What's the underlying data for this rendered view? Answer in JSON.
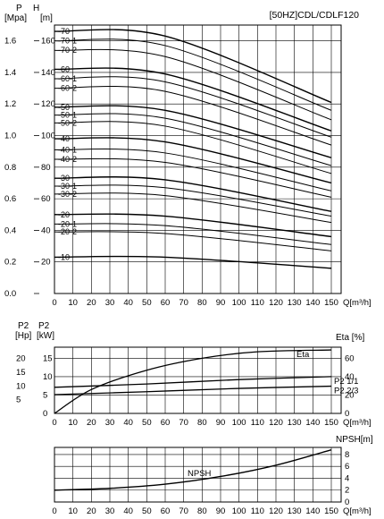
{
  "chart_data": [
    {
      "type": "line",
      "title": "[50HZ]CDL/CDLF120",
      "left_axis": {
        "top_label": "P",
        "unit_label": "[Mpa]",
        "ylim": [
          0,
          1.7
        ],
        "ticks": [
          "0.0",
          "0.2",
          "0.4",
          "0.6",
          "0.8",
          "1.0",
          "1.2",
          "1.4",
          "1.6"
        ]
      },
      "right_axis": {
        "top_label": "H",
        "unit_label": "[m]",
        "ylim": [
          0,
          170
        ],
        "ticks": [
          "20",
          "40",
          "60",
          "80",
          "100",
          "120",
          "140",
          "160"
        ]
      },
      "xlabel": "Q[m³/h]",
      "xlim": [
        0,
        150
      ],
      "x_ticks": [
        "0",
        "10",
        "20",
        "30",
        "40",
        "50",
        "60",
        "70",
        "80",
        "90",
        "100",
        "110",
        "120",
        "130",
        "140",
        "150"
      ],
      "grid": true,
      "series": [
        {
          "name": "-70",
          "x": [
            0,
            60,
            150
          ],
          "y": [
            166,
            163,
            121
          ]
        },
        {
          "name": "-70-1",
          "x": [
            0,
            60,
            150
          ],
          "y": [
            160,
            157,
            116
          ]
        },
        {
          "name": "-70-2",
          "x": [
            0,
            60,
            150
          ],
          "y": [
            154,
            150,
            110
          ]
        },
        {
          "name": "-60",
          "x": [
            0,
            60,
            150
          ],
          "y": [
            142,
            139,
            103
          ]
        },
        {
          "name": "-60-1",
          "x": [
            0,
            60,
            150
          ],
          "y": [
            136,
            134,
            99
          ]
        },
        {
          "name": "-60-2",
          "x": [
            0,
            60,
            150
          ],
          "y": [
            130,
            128,
            94
          ]
        },
        {
          "name": "-50",
          "x": [
            0,
            60,
            150
          ],
          "y": [
            118,
            116,
            86
          ]
        },
        {
          "name": "-50-1",
          "x": [
            0,
            60,
            150
          ],
          "y": [
            113,
            111,
            81
          ]
        },
        {
          "name": "-50-2",
          "x": [
            0,
            60,
            150
          ],
          "y": [
            108,
            106,
            76
          ]
        },
        {
          "name": "-40",
          "x": [
            0,
            60,
            150
          ],
          "y": [
            98,
            96,
            70
          ]
        },
        {
          "name": "-40-1",
          "x": [
            0,
            60,
            150
          ],
          "y": [
            91,
            89,
            65
          ]
        },
        {
          "name": "-40-2",
          "x": [
            0,
            60,
            150
          ],
          "y": [
            85,
            83,
            61
          ]
        },
        {
          "name": "-30",
          "x": [
            0,
            60,
            150
          ],
          "y": [
            73,
            72,
            52
          ]
        },
        {
          "name": "-30-1",
          "x": [
            0,
            60,
            150
          ],
          "y": [
            68,
            67,
            49
          ]
        },
        {
          "name": "-30-2",
          "x": [
            0,
            60,
            150
          ],
          "y": [
            63,
            62,
            45
          ]
        },
        {
          "name": "-20",
          "x": [
            0,
            60,
            150
          ],
          "y": [
            50,
            49,
            36
          ]
        },
        {
          "name": "-20-1",
          "x": [
            0,
            60,
            150
          ],
          "y": [
            44,
            43,
            31
          ]
        },
        {
          "name": "-20-2",
          "x": [
            0,
            60,
            150
          ],
          "y": [
            39,
            38,
            27
          ]
        },
        {
          "name": "-10",
          "x": [
            0,
            60,
            150
          ],
          "y": [
            23,
            23,
            16
          ]
        }
      ]
    },
    {
      "type": "line",
      "left_axis": {
        "top_label": "P2",
        "unit_label": "[Hp]",
        "ticks": [
          "5",
          "10",
          "15",
          "20"
        ]
      },
      "left_axis2": {
        "top_label": "P2",
        "unit_label": "[kW]",
        "ylim": [
          0,
          18
        ],
        "ticks": [
          "0",
          "5",
          "10",
          "15"
        ]
      },
      "right_axis": {
        "label": "Eta [%]",
        "ylim": [
          0,
          72
        ],
        "ticks": [
          "0",
          "20",
          "40",
          "60"
        ]
      },
      "xlabel": "Q[m³/h]",
      "xlim": [
        0,
        150
      ],
      "x_ticks": [
        "0",
        "10",
        "20",
        "30",
        "40",
        "50",
        "60",
        "70",
        "80",
        "90",
        "100",
        "110",
        "120",
        "130",
        "140",
        "150"
      ],
      "grid": true,
      "series": [
        {
          "name": "Eta",
          "axis": "right",
          "x": [
            0,
            20,
            50,
            80,
            110,
            150
          ],
          "y": [
            0,
            26,
            47,
            60,
            67,
            69
          ]
        },
        {
          "name": "P2 1/1",
          "axis": "left",
          "x": [
            0,
            50,
            100,
            150
          ],
          "y": [
            7.1,
            8.0,
            9.2,
            10.0
          ]
        },
        {
          "name": "P2 2/3",
          "axis": "left",
          "x": [
            0,
            50,
            100,
            150
          ],
          "y": [
            5.1,
            5.9,
            6.8,
            7.4
          ]
        }
      ]
    },
    {
      "type": "line",
      "right_axis": {
        "label": "NPSH[m]",
        "ylim": [
          0,
          9.2
        ],
        "ticks": [
          "0",
          "2",
          "4",
          "6",
          "8"
        ]
      },
      "xlabel": "Q[m³/h]",
      "xlim": [
        0,
        150
      ],
      "x_ticks": [
        "0",
        "10",
        "20",
        "30",
        "40",
        "50",
        "60",
        "70",
        "80",
        "90",
        "100",
        "110",
        "120",
        "130",
        "140",
        "150"
      ],
      "grid": true,
      "series": [
        {
          "name": "NPSH",
          "axis": "right",
          "x": [
            0,
            30,
            60,
            90,
            120,
            150
          ],
          "y": [
            2.0,
            2.3,
            3.0,
            4.3,
            6.2,
            8.8
          ]
        }
      ]
    }
  ]
}
